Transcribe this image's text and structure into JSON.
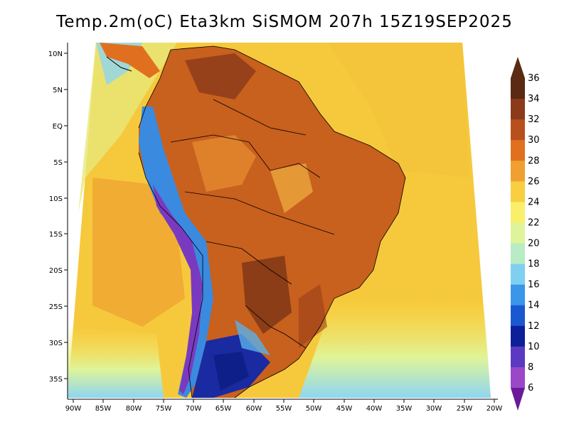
{
  "title": "Temp.2m(oC) Eta3km SiSMOM 207h 15Z19SEP2025",
  "lat_ticks": [
    "10N",
    "5N",
    "EQ",
    "5S",
    "10S",
    "15S",
    "20S",
    "25S",
    "30S",
    "35S"
  ],
  "lon_ticks": [
    "90W",
    "85W",
    "80W",
    "75W",
    "70W",
    "65W",
    "60W",
    "55W",
    "50W",
    "45W",
    "40W",
    "35W",
    "30W",
    "25W",
    "20W"
  ],
  "colorbar": {
    "labels": [
      "36",
      "34",
      "32",
      "30",
      "28",
      "26",
      "24",
      "22",
      "20",
      "18",
      "16",
      "14",
      "12",
      "10",
      "8",
      "6"
    ],
    "colors": [
      "#5a2a12",
      "#8b3a1a",
      "#b8501e",
      "#e0701f",
      "#f0a030",
      "#f7cf40",
      "#f9ef6a",
      "#dff49a",
      "#b8ecc4",
      "#7fd0f0",
      "#3a96e8",
      "#1a58d0",
      "#0e1f9a",
      "#5a3ac0",
      "#9a48c8",
      "#6a1a98"
    ]
  }
}
